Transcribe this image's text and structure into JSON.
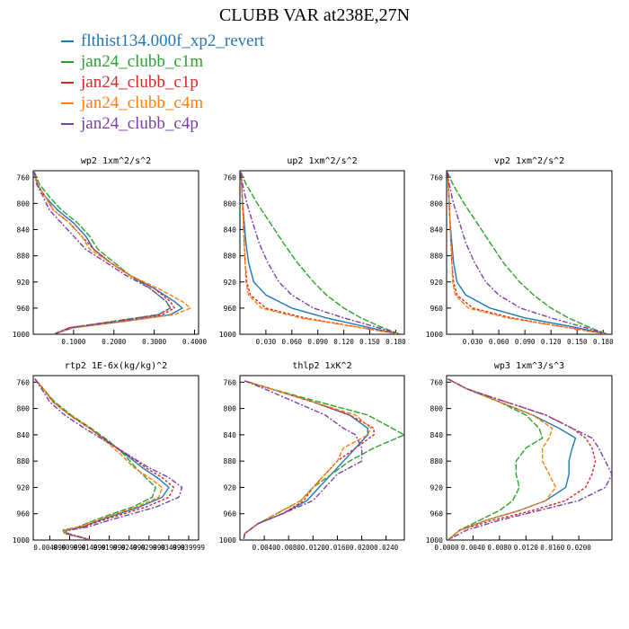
{
  "title": "CLUBB VAR at238E,27N",
  "legend": [
    {
      "name": "flthist134.000f_xp2_revert",
      "color": "#1f77b4"
    },
    {
      "name": "jan24_clubb_c1m",
      "color": "#2ca02c"
    },
    {
      "name": "jan24_clubb_c1p",
      "color": "#d62728"
    },
    {
      "name": "jan24_clubb_c4m",
      "color": "#ff7f0e"
    },
    {
      "name": "jan24_clubb_c4p",
      "color": "#7b3fa6"
    }
  ],
  "chart_data": [
    {
      "type": "line",
      "title": "wp2  1xm^2/s^2",
      "ylim": [
        1000,
        750
      ],
      "yticks": [
        760,
        800,
        840,
        880,
        920,
        960,
        1000
      ],
      "xlim": [
        0,
        0.41
      ],
      "xticks": [
        0.1,
        0.2,
        0.3,
        0.4
      ],
      "xticklabels": [
        "0.1000",
        "0.2000",
        "0.3000",
        "0.4000"
      ],
      "y": [
        752,
        770,
        790,
        810,
        830,
        850,
        870,
        890,
        910,
        930,
        950,
        960,
        970,
        980,
        990,
        1000
      ],
      "series": [
        {
          "color": "#1f77b4",
          "x": [
            0.003,
            0.01,
            0.03,
            0.06,
            0.1,
            0.13,
            0.15,
            0.19,
            0.24,
            0.3,
            0.35,
            0.37,
            0.34,
            0.23,
            0.1,
            0.05
          ]
        },
        {
          "color": "#2ca02c",
          "x": [
            0.003,
            0.015,
            0.04,
            0.07,
            0.11,
            0.14,
            0.16,
            0.2,
            0.24,
            0.29,
            0.33,
            0.34,
            0.31,
            0.2,
            0.09,
            0.05
          ]
        },
        {
          "color": "#d62728",
          "x": [
            0.003,
            0.01,
            0.03,
            0.05,
            0.09,
            0.12,
            0.15,
            0.19,
            0.24,
            0.3,
            0.34,
            0.35,
            0.32,
            0.21,
            0.09,
            0.05
          ]
        },
        {
          "color": "#ff7f0e",
          "x": [
            0.003,
            0.01,
            0.03,
            0.05,
            0.09,
            0.12,
            0.14,
            0.19,
            0.24,
            0.31,
            0.37,
            0.39,
            0.35,
            0.23,
            0.1,
            0.05
          ]
        },
        {
          "color": "#7b3fa6",
          "x": [
            0.003,
            0.008,
            0.025,
            0.04,
            0.07,
            0.1,
            0.13,
            0.18,
            0.23,
            0.29,
            0.33,
            0.34,
            0.31,
            0.21,
            0.09,
            0.05
          ]
        }
      ]
    },
    {
      "type": "line",
      "title": "up2  1xm^2/s^2",
      "ylim": [
        1000,
        750
      ],
      "yticks": [
        760,
        800,
        840,
        880,
        920,
        960,
        1000
      ],
      "xlim": [
        0,
        0.19
      ],
      "xticks": [
        0.03,
        0.06,
        0.09,
        0.12,
        0.15,
        0.18
      ],
      "xticklabels": [
        "0.030",
        "0.060",
        "0.090",
        "0.120",
        "0.150",
        "0.180"
      ],
      "y": [
        752,
        770,
        800,
        830,
        860,
        890,
        920,
        940,
        960,
        975,
        990,
        1000
      ],
      "series": [
        {
          "color": "#1f77b4",
          "x": [
            0.001,
            0.002,
            0.003,
            0.005,
            0.007,
            0.01,
            0.016,
            0.03,
            0.06,
            0.1,
            0.15,
            0.185
          ]
        },
        {
          "color": "#2ca02c",
          "x": [
            0.001,
            0.007,
            0.02,
            0.035,
            0.05,
            0.066,
            0.085,
            0.1,
            0.12,
            0.14,
            0.165,
            0.185
          ]
        },
        {
          "color": "#d62728",
          "x": [
            0.001,
            0.002,
            0.003,
            0.004,
            0.005,
            0.006,
            0.008,
            0.012,
            0.03,
            0.075,
            0.14,
            0.185
          ]
        },
        {
          "color": "#ff7f0e",
          "x": [
            0.001,
            0.002,
            0.003,
            0.004,
            0.005,
            0.006,
            0.007,
            0.01,
            0.025,
            0.07,
            0.14,
            0.185
          ]
        },
        {
          "color": "#7b3fa6",
          "x": [
            0.001,
            0.003,
            0.008,
            0.015,
            0.022,
            0.032,
            0.045,
            0.06,
            0.085,
            0.12,
            0.16,
            0.185
          ]
        }
      ]
    },
    {
      "type": "line",
      "title": "vp2  1xm^2/s^2",
      "ylim": [
        1000,
        750
      ],
      "yticks": [
        760,
        800,
        840,
        880,
        920,
        960,
        1000
      ],
      "xlim": [
        0,
        0.19
      ],
      "xticks": [
        0.03,
        0.06,
        0.09,
        0.12,
        0.15,
        0.18
      ],
      "xticklabels": [
        "0.030",
        "0.060",
        "0.090",
        "0.120",
        "0.150",
        "0.180"
      ],
      "y": [
        752,
        770,
        800,
        830,
        860,
        890,
        920,
        940,
        960,
        975,
        990,
        1000
      ],
      "series": [
        {
          "color": "#1f77b4",
          "x": [
            0.001,
            0.002,
            0.003,
            0.004,
            0.006,
            0.008,
            0.012,
            0.022,
            0.05,
            0.09,
            0.15,
            0.185
          ]
        },
        {
          "color": "#2ca02c",
          "x": [
            0.001,
            0.007,
            0.02,
            0.035,
            0.05,
            0.065,
            0.084,
            0.1,
            0.12,
            0.14,
            0.165,
            0.185
          ]
        },
        {
          "color": "#d62728",
          "x": [
            0.001,
            0.002,
            0.003,
            0.004,
            0.005,
            0.006,
            0.008,
            0.012,
            0.03,
            0.075,
            0.14,
            0.185
          ]
        },
        {
          "color": "#ff7f0e",
          "x": [
            0.001,
            0.002,
            0.003,
            0.004,
            0.005,
            0.006,
            0.007,
            0.01,
            0.025,
            0.07,
            0.14,
            0.185
          ]
        },
        {
          "color": "#7b3fa6",
          "x": [
            0.001,
            0.003,
            0.008,
            0.015,
            0.022,
            0.032,
            0.045,
            0.06,
            0.085,
            0.12,
            0.16,
            0.185
          ]
        }
      ]
    },
    {
      "type": "line",
      "title": "rtp2  1E-6x(kg/kg)^2",
      "ylim": [
        1000,
        750
      ],
      "yticks": [
        760,
        800,
        840,
        880,
        920,
        960,
        1000
      ],
      "xlim": [
        0,
        1
      ],
      "xticks": [
        0.1,
        0.22,
        0.34,
        0.46,
        0.58,
        0.7,
        0.82,
        0.94
      ],
      "xticklabels": [
        "0.004999",
        "0.009999",
        "0.014999",
        "0.019999",
        "0.024999",
        "0.029999",
        "0.034999",
        "0.039999"
      ],
      "y": [
        755,
        770,
        790,
        810,
        830,
        850,
        870,
        890,
        905,
        920,
        935,
        950,
        960,
        970,
        980,
        985,
        990,
        1000
      ],
      "series": [
        {
          "color": "#1f77b4",
          "x": [
            0.01,
            0.06,
            0.12,
            0.22,
            0.34,
            0.45,
            0.56,
            0.66,
            0.75,
            0.82,
            0.78,
            0.64,
            0.52,
            0.4,
            0.3,
            0.2,
            0.2,
            0.35
          ]
        },
        {
          "color": "#2ca02c",
          "x": [
            0.01,
            0.06,
            0.13,
            0.23,
            0.35,
            0.46,
            0.55,
            0.62,
            0.68,
            0.74,
            0.72,
            0.6,
            0.48,
            0.37,
            0.27,
            0.18,
            0.19,
            0.35
          ]
        },
        {
          "color": "#d62728",
          "x": [
            0.01,
            0.06,
            0.12,
            0.22,
            0.34,
            0.45,
            0.57,
            0.68,
            0.78,
            0.85,
            0.82,
            0.68,
            0.55,
            0.42,
            0.3,
            0.2,
            0.19,
            0.35
          ]
        },
        {
          "color": "#ff7f0e",
          "x": [
            0.01,
            0.06,
            0.12,
            0.22,
            0.34,
            0.44,
            0.53,
            0.61,
            0.7,
            0.78,
            0.76,
            0.62,
            0.5,
            0.38,
            0.28,
            0.19,
            0.2,
            0.35
          ]
        },
        {
          "color": "#7b3fa6",
          "x": [
            0.01,
            0.05,
            0.1,
            0.19,
            0.31,
            0.44,
            0.57,
            0.7,
            0.82,
            0.9,
            0.88,
            0.74,
            0.6,
            0.46,
            0.33,
            0.22,
            0.21,
            0.35
          ]
        }
      ]
    },
    {
      "type": "line",
      "title": "thlp2  1xK^2",
      "ylim": [
        1000,
        750
      ],
      "yticks": [
        760,
        800,
        840,
        880,
        920,
        960,
        1000
      ],
      "xlim": [
        0,
        0.027
      ],
      "xticks": [
        0.004,
        0.008,
        0.012,
        0.016,
        0.02,
        0.024
      ],
      "xticklabels": [
        "0.0040",
        "0.0080",
        "0.0120",
        "0.0160",
        "0.0200",
        "0.0240"
      ],
      "y": [
        758,
        770,
        790,
        810,
        830,
        840,
        860,
        880,
        900,
        920,
        940,
        960,
        975,
        990,
        1000
      ],
      "series": [
        {
          "color": "#1f77b4",
          "x": [
            0.0008,
            0.005,
            0.012,
            0.018,
            0.021,
            0.021,
            0.019,
            0.017,
            0.015,
            0.013,
            0.011,
            0.007,
            0.003,
            0.0008,
            0.0006
          ]
        },
        {
          "color": "#2ca02c",
          "x": [
            0.0008,
            0.005,
            0.013,
            0.021,
            0.025,
            0.027,
            0.022,
            0.018,
            0.015,
            0.012,
            0.01,
            0.006,
            0.003,
            0.0008,
            0.0006
          ]
        },
        {
          "color": "#d62728",
          "x": [
            0.0008,
            0.005,
            0.012,
            0.018,
            0.022,
            0.022,
            0.019,
            0.016,
            0.014,
            0.012,
            0.0105,
            0.007,
            0.003,
            0.0008,
            0.0006
          ]
        },
        {
          "color": "#ff7f0e",
          "x": [
            0.0008,
            0.005,
            0.012,
            0.019,
            0.0215,
            0.021,
            0.017,
            0.016,
            0.014,
            0.012,
            0.01,
            0.006,
            0.003,
            0.0008,
            0.0006
          ]
        },
        {
          "color": "#7b3fa6",
          "x": [
            0.0008,
            0.004,
            0.009,
            0.014,
            0.017,
            0.019,
            0.02,
            0.02,
            0.016,
            0.014,
            0.012,
            0.007,
            0.003,
            0.0008,
            0.0006
          ]
        }
      ]
    },
    {
      "type": "line",
      "title": "wp3  1xm^3/s^3",
      "ylim": [
        1000,
        750
      ],
      "yticks": [
        760,
        800,
        840,
        880,
        920,
        960,
        1000
      ],
      "xlim": [
        0,
        0.025
      ],
      "xticks": [
        0,
        0.004,
        0.008,
        0.012,
        0.016,
        0.02
      ],
      "xticklabels": [
        "0.0000",
        "0.0040",
        "0.0080",
        "0.0120",
        "0.0160",
        "0.0200"
      ],
      "y": [
        755,
        770,
        790,
        810,
        830,
        845,
        860,
        880,
        900,
        920,
        940,
        955,
        970,
        985,
        1000
      ],
      "series": [
        {
          "color": "#1f77b4",
          "x": [
            0.0002,
            0.003,
            0.008,
            0.013,
            0.017,
            0.0195,
            0.019,
            0.0185,
            0.0185,
            0.018,
            0.015,
            0.011,
            0.006,
            0.002,
            0.0002
          ]
        },
        {
          "color": "#2ca02c",
          "x": [
            0.0002,
            0.003,
            0.008,
            0.012,
            0.014,
            0.0145,
            0.012,
            0.0105,
            0.0105,
            0.011,
            0.01,
            0.008,
            0.005,
            0.002,
            0.0002
          ]
        },
        {
          "color": "#d62728",
          "x": [
            0.0002,
            0.003,
            0.009,
            0.015,
            0.019,
            0.021,
            0.022,
            0.0225,
            0.022,
            0.021,
            0.018,
            0.013,
            0.007,
            0.002,
            0.0002
          ]
        },
        {
          "color": "#ff7f0e",
          "x": [
            0.0002,
            0.003,
            0.008,
            0.013,
            0.016,
            0.0155,
            0.0145,
            0.0145,
            0.0155,
            0.0165,
            0.015,
            0.011,
            0.006,
            0.002,
            0.0002
          ]
        },
        {
          "color": "#7b3fa6",
          "x": [
            0.0002,
            0.003,
            0.009,
            0.015,
            0.019,
            0.022,
            0.023,
            0.024,
            0.025,
            0.024,
            0.02,
            0.014,
            0.008,
            0.003,
            0.0002
          ]
        }
      ]
    }
  ]
}
